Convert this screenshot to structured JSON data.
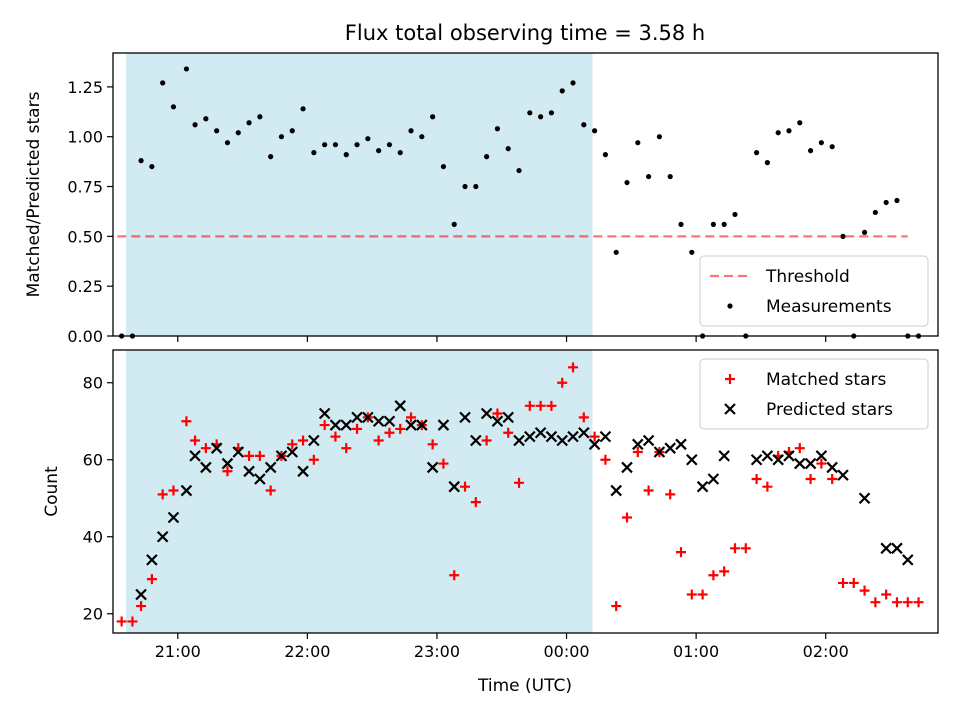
{
  "title": "Flux total observing time = 3.58 h",
  "colors": {
    "shade": "#add8e6",
    "threshold": "#ff0000",
    "measurement": "#000000",
    "matched": "#ff0000",
    "predicted": "#000000"
  },
  "chart_data": [
    {
      "type": "scatter",
      "name": "ratio-panel",
      "ylabel": "Matched/Predicted stars",
      "xlabel": "",
      "ylim": [
        0,
        1.42
      ],
      "yticks": [
        0.0,
        0.25,
        0.5,
        0.75,
        1.0,
        1.25
      ],
      "yticklabels": [
        "0.00",
        "0.25",
        "0.50",
        "0.75",
        "1.00",
        "1.25"
      ],
      "xrange": [
        "20:30",
        "02:52"
      ],
      "shaded_span": [
        "20:36",
        "00:12"
      ],
      "legend": {
        "position": "lower right",
        "entries": [
          "Threshold",
          "Measurements"
        ]
      },
      "threshold": {
        "name": "Threshold",
        "y": 0.5,
        "x": [
          "20:32",
          "02:38"
        ],
        "style": "dashed"
      },
      "series": [
        {
          "name": "Measurements",
          "marker": "dot",
          "points": [
            [
              "20:34",
              0.0
            ],
            [
              "20:39",
              0.0
            ],
            [
              "20:43",
              0.88
            ],
            [
              "20:48",
              0.85
            ],
            [
              "20:53",
              1.27
            ],
            [
              "20:58",
              1.15
            ],
            [
              "21:04",
              1.34
            ],
            [
              "21:08",
              1.06
            ],
            [
              "21:13",
              1.09
            ],
            [
              "21:18",
              1.03
            ],
            [
              "21:23",
              0.97
            ],
            [
              "21:28",
              1.02
            ],
            [
              "21:33",
              1.07
            ],
            [
              "21:38",
              1.1
            ],
            [
              "21:43",
              0.9
            ],
            [
              "21:48",
              1.0
            ],
            [
              "21:53",
              1.03
            ],
            [
              "21:58",
              1.14
            ],
            [
              "22:03",
              0.92
            ],
            [
              "22:08",
              0.96
            ],
            [
              "22:13",
              0.96
            ],
            [
              "22:18",
              0.91
            ],
            [
              "22:23",
              0.96
            ],
            [
              "22:28",
              0.99
            ],
            [
              "22:33",
              0.93
            ],
            [
              "22:38",
              0.96
            ],
            [
              "22:43",
              0.92
            ],
            [
              "22:48",
              1.03
            ],
            [
              "22:53",
              1.0
            ],
            [
              "22:58",
              1.1
            ],
            [
              "23:03",
              0.85
            ],
            [
              "23:08",
              0.56
            ],
            [
              "23:13",
              0.75
            ],
            [
              "23:18",
              0.75
            ],
            [
              "23:23",
              0.9
            ],
            [
              "23:28",
              1.04
            ],
            [
              "23:33",
              0.94
            ],
            [
              "23:38",
              0.83
            ],
            [
              "23:43",
              1.12
            ],
            [
              "23:48",
              1.1
            ],
            [
              "23:53",
              1.12
            ],
            [
              "23:58",
              1.23
            ],
            [
              "00:03",
              1.27
            ],
            [
              "00:08",
              1.06
            ],
            [
              "00:13",
              1.03
            ],
            [
              "00:18",
              0.91
            ],
            [
              "00:23",
              0.42
            ],
            [
              "00:28",
              0.77
            ],
            [
              "00:33",
              0.97
            ],
            [
              "00:38",
              0.8
            ],
            [
              "00:43",
              1.0
            ],
            [
              "00:48",
              0.8
            ],
            [
              "00:53",
              0.56
            ],
            [
              "00:58",
              0.42
            ],
            [
              "01:03",
              0.0
            ],
            [
              "01:08",
              0.56
            ],
            [
              "01:13",
              0.56
            ],
            [
              "01:18",
              0.61
            ],
            [
              "01:23",
              0.0
            ],
            [
              "01:28",
              0.92
            ],
            [
              "01:33",
              0.87
            ],
            [
              "01:38",
              1.02
            ],
            [
              "01:43",
              1.03
            ],
            [
              "01:48",
              1.07
            ],
            [
              "01:53",
              0.93
            ],
            [
              "01:58",
              0.97
            ],
            [
              "02:03",
              0.95
            ],
            [
              "02:08",
              0.5
            ],
            [
              "02:13",
              0.0
            ],
            [
              "02:18",
              0.52
            ],
            [
              "02:23",
              0.62
            ],
            [
              "02:28",
              0.67
            ],
            [
              "02:33",
              0.68
            ],
            [
              "02:38",
              0.0
            ],
            [
              "02:43",
              0.0
            ]
          ]
        }
      ]
    },
    {
      "type": "scatter",
      "name": "count-panel",
      "ylabel": "Count",
      "xlabel": "Time (UTC)",
      "ylim": [
        15,
        88.5
      ],
      "yticks": [
        20,
        40,
        60,
        80
      ],
      "yticklabels": [
        "20",
        "40",
        "60",
        "80"
      ],
      "xrange": [
        "20:30",
        "02:52"
      ],
      "xticks": [
        "21:00",
        "22:00",
        "23:00",
        "00:00",
        "01:00",
        "02:00"
      ],
      "xticklabels": [
        "21:00",
        "22:00",
        "23:00",
        "00:00",
        "01:00",
        "02:00"
      ],
      "shaded_span": [
        "20:36",
        "00:12"
      ],
      "legend": {
        "position": "upper right",
        "entries": [
          "Matched stars",
          "Predicted stars"
        ]
      },
      "series": [
        {
          "name": "Matched stars",
          "marker": "plus",
          "points": [
            [
              "20:34",
              18
            ],
            [
              "20:39",
              18
            ],
            [
              "20:43",
              22
            ],
            [
              "20:48",
              29
            ],
            [
              "20:53",
              51
            ],
            [
              "20:58",
              52
            ],
            [
              "21:04",
              70
            ],
            [
              "21:08",
              65
            ],
            [
              "21:13",
              63
            ],
            [
              "21:18",
              64
            ],
            [
              "21:23",
              57
            ],
            [
              "21:28",
              63
            ],
            [
              "21:33",
              61
            ],
            [
              "21:38",
              61
            ],
            [
              "21:43",
              52
            ],
            [
              "21:48",
              61
            ],
            [
              "21:53",
              64
            ],
            [
              "21:58",
              65
            ],
            [
              "22:03",
              60
            ],
            [
              "22:08",
              69
            ],
            [
              "22:13",
              66
            ],
            [
              "22:18",
              63
            ],
            [
              "22:23",
              68
            ],
            [
              "22:28",
              71
            ],
            [
              "22:33",
              65
            ],
            [
              "22:38",
              67
            ],
            [
              "22:43",
              68
            ],
            [
              "22:48",
              71
            ],
            [
              "22:53",
              69
            ],
            [
              "22:58",
              64
            ],
            [
              "23:03",
              59
            ],
            [
              "23:08",
              30
            ],
            [
              "23:13",
              53
            ],
            [
              "23:18",
              49
            ],
            [
              "23:23",
              65
            ],
            [
              "23:28",
              72
            ],
            [
              "23:33",
              67
            ],
            [
              "23:38",
              54
            ],
            [
              "23:43",
              74
            ],
            [
              "23:48",
              74
            ],
            [
              "23:53",
              74
            ],
            [
              "23:58",
              80
            ],
            [
              "00:03",
              84
            ],
            [
              "00:08",
              71
            ],
            [
              "00:13",
              66
            ],
            [
              "00:18",
              60
            ],
            [
              "00:23",
              22
            ],
            [
              "00:28",
              45
            ],
            [
              "00:33",
              62
            ],
            [
              "00:38",
              52
            ],
            [
              "00:43",
              62
            ],
            [
              "00:48",
              51
            ],
            [
              "00:53",
              36
            ],
            [
              "00:58",
              25
            ],
            [
              "01:03",
              25
            ],
            [
              "01:08",
              30
            ],
            [
              "01:13",
              31
            ],
            [
              "01:18",
              37
            ],
            [
              "01:23",
              37
            ],
            [
              "01:28",
              55
            ],
            [
              "01:33",
              53
            ],
            [
              "01:38",
              61
            ],
            [
              "01:43",
              62
            ],
            [
              "01:48",
              63
            ],
            [
              "01:53",
              55
            ],
            [
              "01:58",
              59
            ],
            [
              "02:03",
              55
            ],
            [
              "02:08",
              28
            ],
            [
              "02:13",
              28
            ],
            [
              "02:18",
              26
            ],
            [
              "02:23",
              23
            ],
            [
              "02:28",
              25
            ],
            [
              "02:33",
              23
            ],
            [
              "02:38",
              23
            ],
            [
              "02:43",
              23
            ]
          ]
        },
        {
          "name": "Predicted stars",
          "marker": "x",
          "points": [
            [
              "20:43",
              25
            ],
            [
              "20:48",
              34
            ],
            [
              "20:53",
              40
            ],
            [
              "20:58",
              45
            ],
            [
              "21:04",
              52
            ],
            [
              "21:08",
              61
            ],
            [
              "21:13",
              58
            ],
            [
              "21:18",
              63
            ],
            [
              "21:23",
              59
            ],
            [
              "21:28",
              62
            ],
            [
              "21:33",
              57
            ],
            [
              "21:38",
              55
            ],
            [
              "21:43",
              58
            ],
            [
              "21:48",
              61
            ],
            [
              "21:53",
              62
            ],
            [
              "21:58",
              57
            ],
            [
              "22:03",
              65
            ],
            [
              "22:08",
              72
            ],
            [
              "22:13",
              69
            ],
            [
              "22:18",
              69
            ],
            [
              "22:23",
              71
            ],
            [
              "22:28",
              71
            ],
            [
              "22:33",
              70
            ],
            [
              "22:38",
              70
            ],
            [
              "22:43",
              74
            ],
            [
              "22:48",
              69
            ],
            [
              "22:53",
              69
            ],
            [
              "22:58",
              58
            ],
            [
              "23:03",
              69
            ],
            [
              "23:08",
              53
            ],
            [
              "23:13",
              71
            ],
            [
              "23:18",
              65
            ],
            [
              "23:23",
              72
            ],
            [
              "23:28",
              70
            ],
            [
              "23:33",
              71
            ],
            [
              "23:38",
              65
            ],
            [
              "23:43",
              66
            ],
            [
              "23:48",
              67
            ],
            [
              "23:53",
              66
            ],
            [
              "23:58",
              65
            ],
            [
              "00:03",
              66
            ],
            [
              "00:08",
              67
            ],
            [
              "00:13",
              64
            ],
            [
              "00:18",
              66
            ],
            [
              "00:23",
              52
            ],
            [
              "00:28",
              58
            ],
            [
              "00:33",
              64
            ],
            [
              "00:38",
              65
            ],
            [
              "00:43",
              62
            ],
            [
              "00:48",
              63
            ],
            [
              "00:53",
              64
            ],
            [
              "00:58",
              60
            ],
            [
              "01:03",
              53
            ],
            [
              "01:08",
              55
            ],
            [
              "01:13",
              61
            ],
            [
              "01:28",
              60
            ],
            [
              "01:33",
              61
            ],
            [
              "01:38",
              60
            ],
            [
              "01:43",
              61
            ],
            [
              "01:48",
              59
            ],
            [
              "01:53",
              59
            ],
            [
              "01:58",
              61
            ],
            [
              "02:03",
              58
            ],
            [
              "02:08",
              56
            ],
            [
              "02:18",
              50
            ],
            [
              "02:28",
              37
            ],
            [
              "02:33",
              37
            ],
            [
              "02:38",
              34
            ]
          ]
        }
      ]
    }
  ]
}
